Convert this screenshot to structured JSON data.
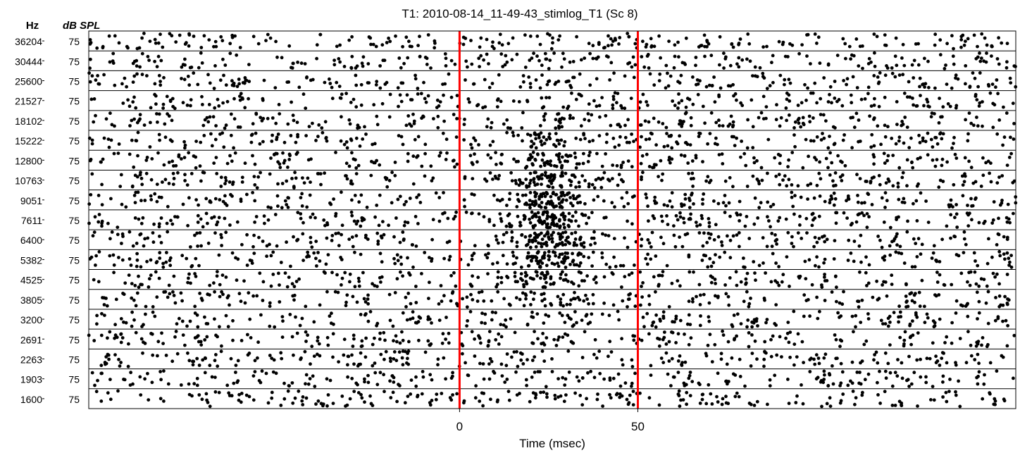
{
  "chart_data": {
    "type": "scatter",
    "subtype": "spike-raster",
    "title": "T1:   2010-08-14_11-49-43_stimlog_T1  (Sc 8)",
    "xlabel": "Time (msec)",
    "y_header_left": "Hz",
    "y_header_right": "dB SPL",
    "x_ticks": [
      0,
      50
    ],
    "xlim": [
      -104,
      156
    ],
    "markers": [
      {
        "x": 0,
        "color": "#ff0000"
      },
      {
        "x": 50,
        "color": "#ff0000"
      }
    ],
    "rows": [
      {
        "freq": "36204",
        "level": "75"
      },
      {
        "freq": "30444",
        "level": "75"
      },
      {
        "freq": "25600",
        "level": "75"
      },
      {
        "freq": "21527",
        "level": "75"
      },
      {
        "freq": "18102",
        "level": "75"
      },
      {
        "freq": "15222",
        "level": "75"
      },
      {
        "freq": "12800",
        "level": "75"
      },
      {
        "freq": "10763",
        "level": "75"
      },
      {
        "freq": "9051",
        "level": "75"
      },
      {
        "freq": "7611",
        "level": "75"
      },
      {
        "freq": "6400",
        "level": "75"
      },
      {
        "freq": "5382",
        "level": "75"
      },
      {
        "freq": "4525",
        "level": "75"
      },
      {
        "freq": "3805",
        "level": "75"
      },
      {
        "freq": "3200",
        "level": "75"
      },
      {
        "freq": "2691",
        "level": "75"
      },
      {
        "freq": "2263",
        "level": "75"
      },
      {
        "freq": "1903",
        "level": "75"
      },
      {
        "freq": "1600",
        "level": "75"
      }
    ],
    "spike_color": "#000000",
    "grid": false
  }
}
